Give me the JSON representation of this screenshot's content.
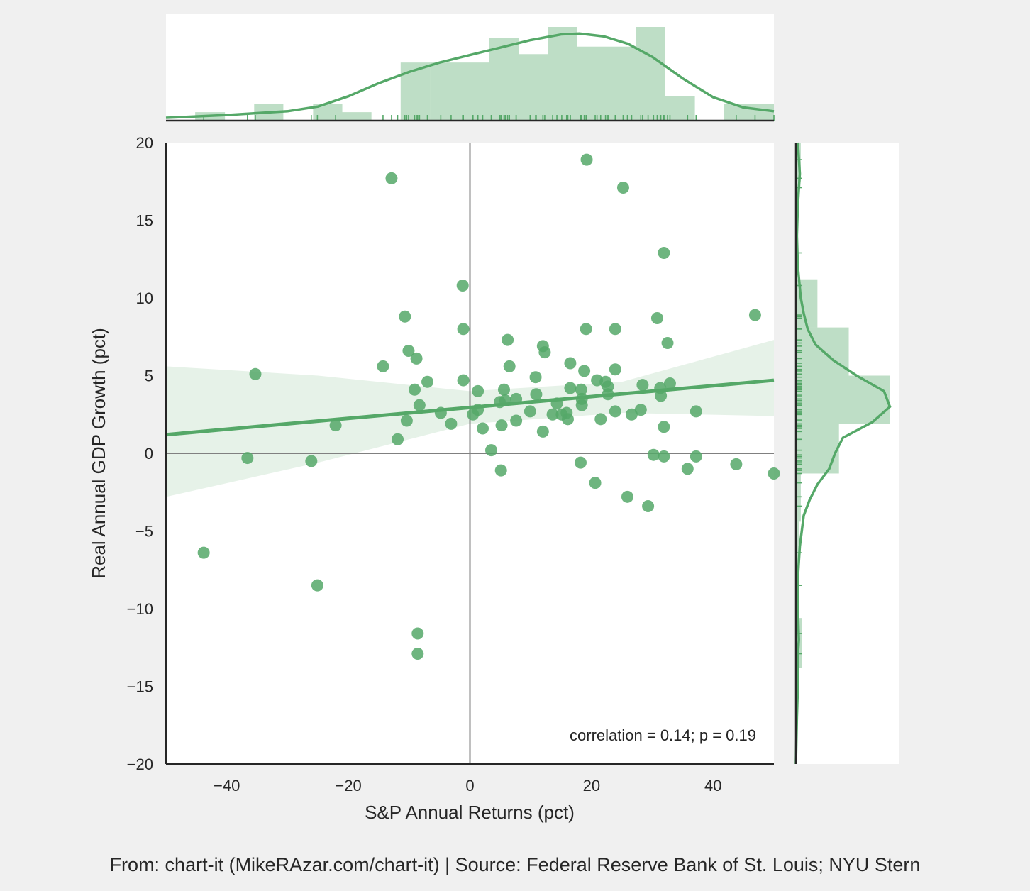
{
  "chart_data": {
    "type": "scatter",
    "xlabel": "S&P Annual Returns (pct)",
    "ylabel": "Real Annual GDP Growth (pct)",
    "xlim": [
      -50,
      50
    ],
    "ylim": [
      -20,
      20
    ],
    "x_ticks": [
      -40,
      -20,
      0,
      20,
      40
    ],
    "y_ticks": [
      -20,
      -15,
      -10,
      -5,
      0,
      5,
      10,
      15,
      20
    ],
    "x_tick_labels": [
      "−40",
      "−20",
      "0",
      "20",
      "40"
    ],
    "y_tick_labels": [
      "−20",
      "−15",
      "−10",
      "−5",
      "0",
      "5",
      "10",
      "15",
      "20"
    ],
    "grid": false,
    "reference_lines": {
      "x": 0,
      "y": 0
    },
    "annotation": "correlation = 0.14; p = 0.19",
    "footer": "From: chart-it (MikeRAzar.com/chart-it) | Source: Federal Reserve Bank of St. Louis; NYU Stern",
    "color": "#55a868",
    "regression": {
      "line": [
        [
          -50,
          1.2
        ],
        [
          50,
          4.7
        ]
      ],
      "ci_lower": [
        [
          -50,
          -2.8
        ],
        [
          -25,
          -0.6
        ],
        [
          0,
          1.9
        ],
        [
          25,
          2.6
        ],
        [
          50,
          2.4
        ]
      ],
      "ci_upper": [
        [
          -50,
          5.6
        ],
        [
          -25,
          5.0
        ],
        [
          0,
          4.0
        ],
        [
          25,
          4.6
        ],
        [
          50,
          7.3
        ]
      ]
    },
    "points": [
      {
        "x": 19.2,
        "y": 18.9
      },
      {
        "x": -12.9,
        "y": 17.7
      },
      {
        "x": 25.2,
        "y": 17.1
      },
      {
        "x": 31.9,
        "y": 12.9
      },
      {
        "x": -1.2,
        "y": 10.8
      },
      {
        "x": -10.7,
        "y": 8.8
      },
      {
        "x": 46.9,
        "y": 8.9
      },
      {
        "x": 30.8,
        "y": 8.7
      },
      {
        "x": -1.1,
        "y": 8.0
      },
      {
        "x": 19.1,
        "y": 8.0
      },
      {
        "x": 23.9,
        "y": 8.0
      },
      {
        "x": 6.2,
        "y": 7.3
      },
      {
        "x": 32.5,
        "y": 7.1
      },
      {
        "x": 12.0,
        "y": 6.9
      },
      {
        "x": -10.1,
        "y": 6.6
      },
      {
        "x": 12.3,
        "y": 6.5
      },
      {
        "x": -8.8,
        "y": 6.1
      },
      {
        "x": -14.3,
        "y": 5.6
      },
      {
        "x": 6.5,
        "y": 5.6
      },
      {
        "x": 16.5,
        "y": 5.8
      },
      {
        "x": -35.3,
        "y": 5.1
      },
      {
        "x": 18.8,
        "y": 5.3
      },
      {
        "x": 23.9,
        "y": 5.4
      },
      {
        "x": 10.8,
        "y": 4.9
      },
      {
        "x": 20.9,
        "y": 4.7
      },
      {
        "x": -1.1,
        "y": 4.7
      },
      {
        "x": -7.0,
        "y": 4.6
      },
      {
        "x": 22.3,
        "y": 4.6
      },
      {
        "x": 22.7,
        "y": 4.3
      },
      {
        "x": 28.4,
        "y": 4.4
      },
      {
        "x": 32.9,
        "y": 4.5
      },
      {
        "x": 31.3,
        "y": 4.2
      },
      {
        "x": -9.1,
        "y": 4.1
      },
      {
        "x": 1.3,
        "y": 4.0
      },
      {
        "x": 5.6,
        "y": 4.1
      },
      {
        "x": 16.5,
        "y": 4.2
      },
      {
        "x": 18.3,
        "y": 4.1
      },
      {
        "x": 22.7,
        "y": 3.8
      },
      {
        "x": 31.4,
        "y": 3.7
      },
      {
        "x": 10.9,
        "y": 3.8
      },
      {
        "x": 7.6,
        "y": 3.5
      },
      {
        "x": 18.4,
        "y": 3.5
      },
      {
        "x": 4.9,
        "y": 3.3
      },
      {
        "x": 5.8,
        "y": 3.4
      },
      {
        "x": 14.3,
        "y": 3.2
      },
      {
        "x": -8.3,
        "y": 3.1
      },
      {
        "x": 18.4,
        "y": 3.1
      },
      {
        "x": 1.3,
        "y": 2.8
      },
      {
        "x": 9.9,
        "y": 2.7
      },
      {
        "x": 23.9,
        "y": 2.7
      },
      {
        "x": 28.1,
        "y": 2.8
      },
      {
        "x": 37.2,
        "y": 2.7
      },
      {
        "x": -4.8,
        "y": 2.6
      },
      {
        "x": 0.5,
        "y": 2.5
      },
      {
        "x": 13.6,
        "y": 2.5
      },
      {
        "x": 15.1,
        "y": 2.5
      },
      {
        "x": 26.6,
        "y": 2.5
      },
      {
        "x": 15.9,
        "y": 2.6
      },
      {
        "x": 16.1,
        "y": 2.2
      },
      {
        "x": 21.5,
        "y": 2.2
      },
      {
        "x": -10.4,
        "y": 2.1
      },
      {
        "x": 7.6,
        "y": 2.1
      },
      {
        "x": -3.1,
        "y": 1.9
      },
      {
        "x": -22.1,
        "y": 1.8
      },
      {
        "x": 5.2,
        "y": 1.8
      },
      {
        "x": 2.1,
        "y": 1.6
      },
      {
        "x": 31.9,
        "y": 1.7
      },
      {
        "x": 12.0,
        "y": 1.4
      },
      {
        "x": -11.9,
        "y": 0.9
      },
      {
        "x": 3.5,
        "y": 0.2
      },
      {
        "x": 30.2,
        "y": -0.1
      },
      {
        "x": 31.9,
        "y": -0.2
      },
      {
        "x": 37.2,
        "y": -0.2
      },
      {
        "x": -36.6,
        "y": -0.3
      },
      {
        "x": -26.1,
        "y": -0.5
      },
      {
        "x": 18.2,
        "y": -0.6
      },
      {
        "x": 43.8,
        "y": -0.7
      },
      {
        "x": 35.8,
        "y": -1.0
      },
      {
        "x": 5.1,
        "y": -1.1
      },
      {
        "x": 50.0,
        "y": -1.3
      },
      {
        "x": 20.6,
        "y": -1.9
      },
      {
        "x": 25.9,
        "y": -2.8
      },
      {
        "x": 29.3,
        "y": -3.4
      },
      {
        "x": -43.8,
        "y": -6.4
      },
      {
        "x": -25.1,
        "y": -8.5
      },
      {
        "x": -8.6,
        "y": -11.6
      },
      {
        "x": -8.6,
        "y": -12.9
      }
    ],
    "x_hist": {
      "edges": [
        -50,
        -45.2,
        -40.3,
        -35.5,
        -30.7,
        -25.8,
        -21.0,
        -16.2,
        -11.4,
        -6.5,
        -1.7,
        3.1,
        8.0,
        12.8,
        17.6,
        22.5,
        27.3,
        32.1,
        37.0,
        41.8,
        46.6,
        50.0
      ],
      "heights": [
        0,
        0.09,
        0.0,
        0.18,
        0.0,
        0.18,
        0.09,
        0.0,
        0.62,
        0.62,
        0.62,
        0.88,
        0.71,
        1.0,
        0.79,
        0.79,
        1.0,
        0.26,
        0.0,
        0.18,
        0.18
      ],
      "kde": [
        [
          -50,
          0.03
        ],
        [
          -40,
          0.06
        ],
        [
          -30,
          0.1
        ],
        [
          -25,
          0.15
        ],
        [
          -20,
          0.26
        ],
        [
          -15,
          0.4
        ],
        [
          -10,
          0.52
        ],
        [
          -5,
          0.62
        ],
        [
          0,
          0.7
        ],
        [
          5,
          0.78
        ],
        [
          10,
          0.86
        ],
        [
          15,
          0.92
        ],
        [
          18,
          0.93
        ],
        [
          22,
          0.9
        ],
        [
          26,
          0.82
        ],
        [
          30,
          0.68
        ],
        [
          35,
          0.45
        ],
        [
          40,
          0.25
        ],
        [
          45,
          0.14
        ],
        [
          50,
          0.1
        ]
      ]
    },
    "y_hist": {
      "edges": [
        -20,
        -16.9,
        -13.8,
        -10.6,
        -7.5,
        -4.4,
        -1.3,
        1.9,
        5.0,
        8.1,
        11.2,
        14.4,
        17.5,
        20.0
      ],
      "heights": [
        0.0,
        0.0,
        0.06,
        0.0,
        0.03,
        0.05,
        0.44,
        0.96,
        0.54,
        0.22,
        0.0,
        0.02,
        0.05
      ],
      "kde": [
        [
          -20,
          0.0
        ],
        [
          -17,
          0.01
        ],
        [
          -15,
          0.02
        ],
        [
          -13,
          0.02
        ],
        [
          -12,
          0.03
        ],
        [
          -10,
          0.02
        ],
        [
          -8,
          0.02
        ],
        [
          -6,
          0.04
        ],
        [
          -4,
          0.08
        ],
        [
          -3,
          0.14
        ],
        [
          -2,
          0.22
        ],
        [
          -1,
          0.34
        ],
        [
          0,
          0.4
        ],
        [
          1,
          0.48
        ],
        [
          2,
          0.78
        ],
        [
          3,
          0.96
        ],
        [
          4,
          0.9
        ],
        [
          5,
          0.62
        ],
        [
          6,
          0.38
        ],
        [
          7,
          0.2
        ],
        [
          8,
          0.12
        ],
        [
          9,
          0.08
        ],
        [
          10,
          0.05
        ],
        [
          12,
          0.02
        ],
        [
          14,
          0.01
        ],
        [
          16,
          0.02
        ],
        [
          18,
          0.04
        ],
        [
          20,
          0.02
        ]
      ]
    }
  }
}
